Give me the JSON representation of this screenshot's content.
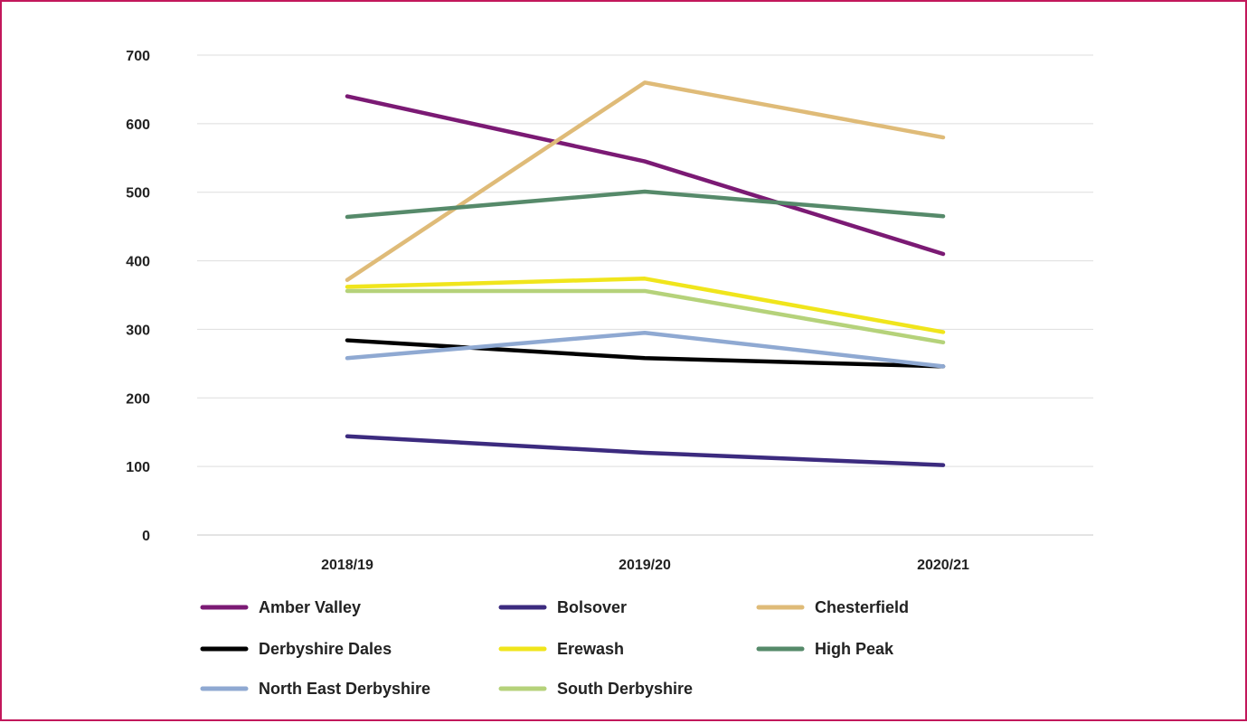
{
  "chart_data": {
    "type": "line",
    "title": "",
    "xlabel": "",
    "ylabel": "",
    "categories": [
      "2018/19",
      "2019/20",
      "2020/21"
    ],
    "ylim": [
      0,
      700
    ],
    "yticks": [
      0,
      100,
      200,
      300,
      400,
      500,
      600,
      700
    ],
    "grid": true,
    "legend_position": "bottom",
    "series": [
      {
        "name": "Amber Valley",
        "color": "#7b1a74",
        "values": [
          640,
          545,
          410
        ]
      },
      {
        "name": "Bolsover",
        "color": "#3c2b7f",
        "values": [
          144,
          120,
          102
        ]
      },
      {
        "name": "Chesterfield",
        "color": "#dfbb78",
        "values": [
          372,
          660,
          580
        ]
      },
      {
        "name": "Derbyshire Dales",
        "color": "#000000",
        "values": [
          284,
          258,
          246
        ]
      },
      {
        "name": "Erewash",
        "color": "#f0e51c",
        "values": [
          362,
          374,
          296
        ]
      },
      {
        "name": "High Peak",
        "color": "#568a6a",
        "values": [
          464,
          501,
          465
        ]
      },
      {
        "name": "North East Derbyshire",
        "color": "#8fa9d2",
        "values": [
          258,
          295,
          246
        ]
      },
      {
        "name": "South Derbyshire",
        "color": "#b5d27a",
        "values": [
          356,
          356,
          281
        ]
      }
    ]
  }
}
